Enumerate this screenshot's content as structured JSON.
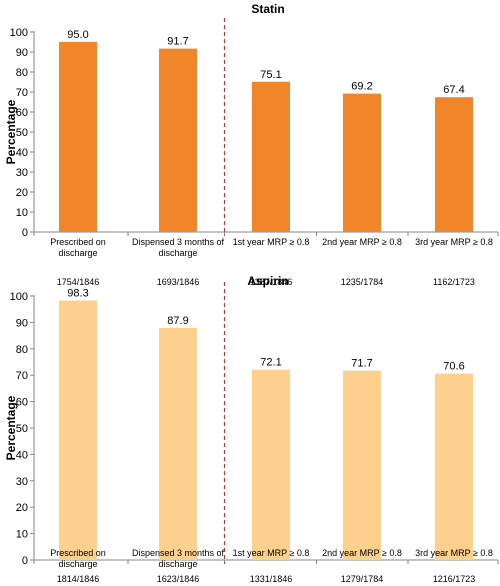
{
  "chart_data": [
    {
      "type": "bar",
      "title": "Statin",
      "ylabel": "Percentage",
      "xlabel": "",
      "ylim": [
        0,
        100
      ],
      "yticks": [
        0,
        10,
        20,
        30,
        40,
        50,
        60,
        70,
        80,
        90,
        100
      ],
      "categories": [
        [
          "Prescribed on",
          "discharge"
        ],
        [
          "Dispensed 3 months of",
          "discharge"
        ],
        [
          "1st year MRP ≥ 0.8"
        ],
        [
          "2nd year MRP ≥ 0.8"
        ],
        [
          "3rd year MRP ≥ 0.8"
        ]
      ],
      "values": [
        95.0,
        91.7,
        75.1,
        69.2,
        67.4
      ],
      "value_labels": [
        "95.0",
        "91.7",
        "75.1",
        "69.2",
        "67.4"
      ],
      "counts": [
        "1754/1846",
        "1693/1846",
        "1387/1846",
        "1235/1784",
        "1162/1723"
      ],
      "bar_color": "#f0852a",
      "divider_after_category": 2,
      "divider_color": "#c0392b",
      "grid": false
    },
    {
      "type": "bar",
      "title": "Aspirin",
      "ylabel": "Percentage",
      "xlabel": "",
      "ylim": [
        0,
        100
      ],
      "yticks": [
        0,
        10,
        20,
        30,
        40,
        50,
        60,
        70,
        80,
        90,
        100
      ],
      "categories": [
        [
          "Prescribed on",
          "discharge"
        ],
        [
          "Dispensed 3 months of",
          "discharge"
        ],
        [
          "1st year MRP ≥ 0.8"
        ],
        [
          "2nd year MRP ≥ 0.8"
        ],
        [
          "3rd year MRP ≥ 0.8"
        ]
      ],
      "values": [
        98.3,
        87.9,
        72.1,
        71.7,
        70.6
      ],
      "value_labels": [
        "98.3",
        "87.9",
        "72.1",
        "71.7",
        "70.6"
      ],
      "counts": [
        "1814/1846",
        "1623/1846",
        "1331/1846",
        "1279/1784",
        "1216/1723"
      ],
      "bar_color": "#fdd08e",
      "divider_after_category": 2,
      "divider_color": "#c0392b",
      "grid": false
    }
  ]
}
